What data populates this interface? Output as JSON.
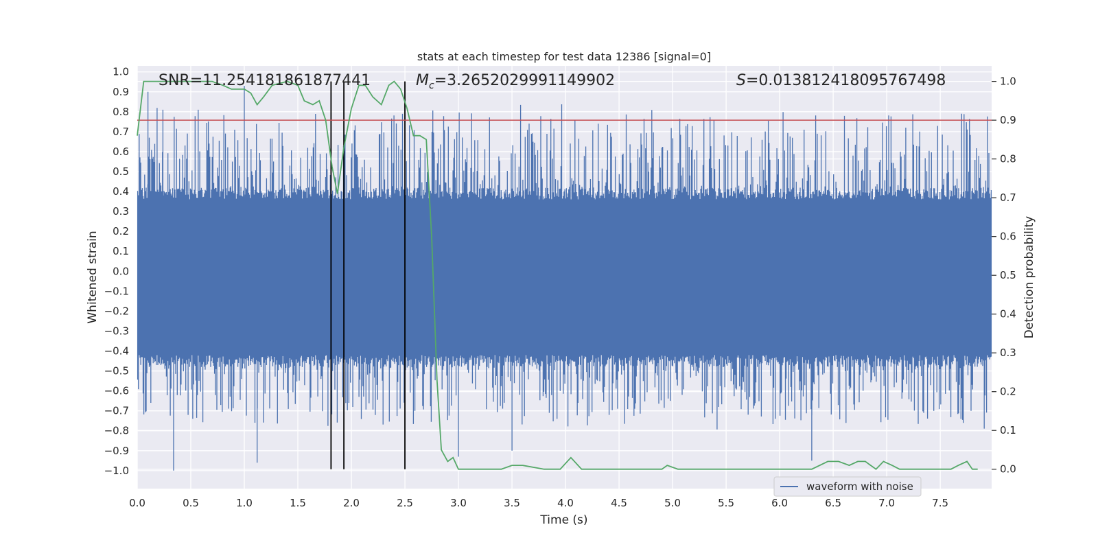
{
  "chart_data": {
    "type": "line",
    "title": "stats at each timestep for test data 12386 [signal=0]",
    "xlabel": "Time (s)",
    "ylabel": "Whitened strain",
    "y2label": "Detection probability",
    "xlim": [
      0.0,
      7.98
    ],
    "ylim": [
      -1.09,
      1.03
    ],
    "y2lim": [
      -0.05,
      1.04
    ],
    "x_ticks": [
      "0.0",
      "0.5",
      "1.0",
      "1.5",
      "2.0",
      "2.5",
      "3.0",
      "3.5",
      "4.0",
      "4.5",
      "5.0",
      "5.5",
      "6.0",
      "6.5",
      "7.0",
      "7.5"
    ],
    "y_ticks": [
      "1.0",
      "0.9",
      "0.8",
      "0.7",
      "0.6",
      "0.5",
      "0.4",
      "0.3",
      "0.2",
      "0.1",
      "0.0",
      "−0.1",
      "−0.2",
      "−0.3",
      "−0.4",
      "−0.5",
      "−0.6",
      "−0.7",
      "−0.8",
      "−0.9",
      "−1.0"
    ],
    "y2_ticks": [
      "1.0",
      "0.9",
      "0.8",
      "0.7",
      "0.6",
      "0.5",
      "0.4",
      "0.3",
      "0.2",
      "0.1",
      "0.0"
    ],
    "annotations": {
      "snr": "SNR=11.254181861877441",
      "mc_symbol": "M",
      "mc_sub": "c",
      "mc_value": "=3.2652029991149902",
      "s_symbol": "S",
      "s_value": "=0.013812418095767498"
    },
    "legend": {
      "label": "waveform with noise",
      "location": "lower-right"
    },
    "threshold_line": {
      "y2": 0.9,
      "color": "#c44e52"
    },
    "vertical_lines": [
      1.81,
      1.93,
      2.5
    ],
    "waveform": {
      "name": "waveform with noise",
      "color": "#4c72b0",
      "typical_envelope": [
        -0.42,
        0.36
      ],
      "notable_spikes": [
        {
          "t": 0.34,
          "v": -1.0
        },
        {
          "t": 0.1,
          "v": 0.9
        },
        {
          "t": 0.24,
          "v": 0.81
        },
        {
          "t": 1.0,
          "v": 0.93
        },
        {
          "t": 1.12,
          "v": -0.96
        },
        {
          "t": 6.3,
          "v": -0.95
        },
        {
          "t": 7.7,
          "v": 0.79
        },
        {
          "t": 3.0,
          "v": -0.93
        },
        {
          "t": 3.5,
          "v": -0.9
        }
      ]
    },
    "series": [
      {
        "name": "detection probability",
        "axis": "right",
        "color": "#55a868",
        "x": [
          0.0,
          0.06,
          0.12,
          0.2,
          0.3,
          0.5,
          0.7,
          0.8,
          0.88,
          1.0,
          1.06,
          1.12,
          1.18,
          1.26,
          1.4,
          1.5,
          1.56,
          1.64,
          1.7,
          1.76,
          1.82,
          1.87,
          1.93,
          2.0,
          2.07,
          2.13,
          2.2,
          2.28,
          2.35,
          2.4,
          2.46,
          2.52,
          2.58,
          2.64,
          2.7,
          2.75,
          2.8,
          2.84,
          2.9,
          2.95,
          3.0,
          3.05,
          3.2,
          3.4,
          3.5,
          3.6,
          3.8,
          3.95,
          4.05,
          4.15,
          4.5,
          4.9,
          4.95,
          5.05,
          5.3,
          5.7,
          6.0,
          6.3,
          6.45,
          6.55,
          6.65,
          6.73,
          6.8,
          6.85,
          6.9,
          6.97,
          7.05,
          7.12,
          7.2,
          7.6,
          7.67,
          7.75,
          7.8,
          7.85
        ],
        "values": [
          0.86,
          1.0,
          1.0,
          1.0,
          1.0,
          1.0,
          1.0,
          0.99,
          0.98,
          0.98,
          0.97,
          0.94,
          0.96,
          0.99,
          1.0,
          0.99,
          0.95,
          0.94,
          0.95,
          0.9,
          0.78,
          0.71,
          0.83,
          0.93,
          0.99,
          0.99,
          0.96,
          0.94,
          0.99,
          1.0,
          0.98,
          0.93,
          0.86,
          0.86,
          0.85,
          0.6,
          0.23,
          0.05,
          0.02,
          0.03,
          0.0,
          0.0,
          0.0,
          0.0,
          0.01,
          0.01,
          0.0,
          0.0,
          0.03,
          0.0,
          0.0,
          0.0,
          0.01,
          0.0,
          0.0,
          0.0,
          0.0,
          0.0,
          0.02,
          0.02,
          0.01,
          0.02,
          0.02,
          0.01,
          0.0,
          0.02,
          0.01,
          0.0,
          0.0,
          0.0,
          0.01,
          0.02,
          0.0,
          0.0
        ]
      }
    ]
  }
}
